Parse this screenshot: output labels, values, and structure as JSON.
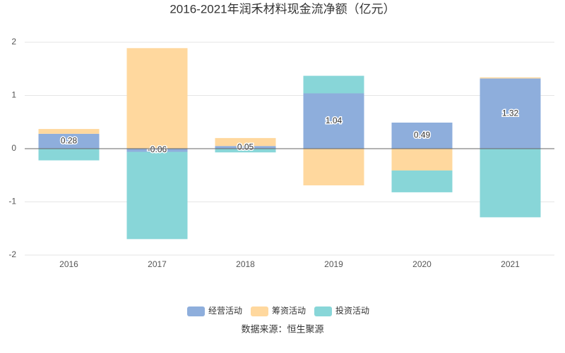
{
  "chart_data": {
    "type": "stacked-bar",
    "title": "2016-2021年润禾材料现金流净额（亿元）",
    "categories": [
      "2016",
      "2017",
      "2018",
      "2019",
      "2020",
      "2021"
    ],
    "series": [
      {
        "name": "经营活动",
        "color": "#8eaedc",
        "values": [
          0.28,
          -0.06,
          0.05,
          1.04,
          0.49,
          1.32
        ]
      },
      {
        "name": "筹资活动",
        "color": "#ffd89e",
        "values": [
          0.09,
          1.89,
          0.15,
          -0.69,
          -0.41,
          0.02
        ]
      },
      {
        "name": "投资活动",
        "color": "#88d6d8",
        "values": [
          -0.22,
          -1.64,
          -0.07,
          0.33,
          -0.41,
          -1.29
        ]
      }
    ],
    "ylim": [
      -2,
      2
    ],
    "yticks": [
      -2,
      -1,
      0,
      1,
      2
    ],
    "grid": true,
    "legend": "bottom",
    "source": "数据来源：恒生聚源"
  }
}
